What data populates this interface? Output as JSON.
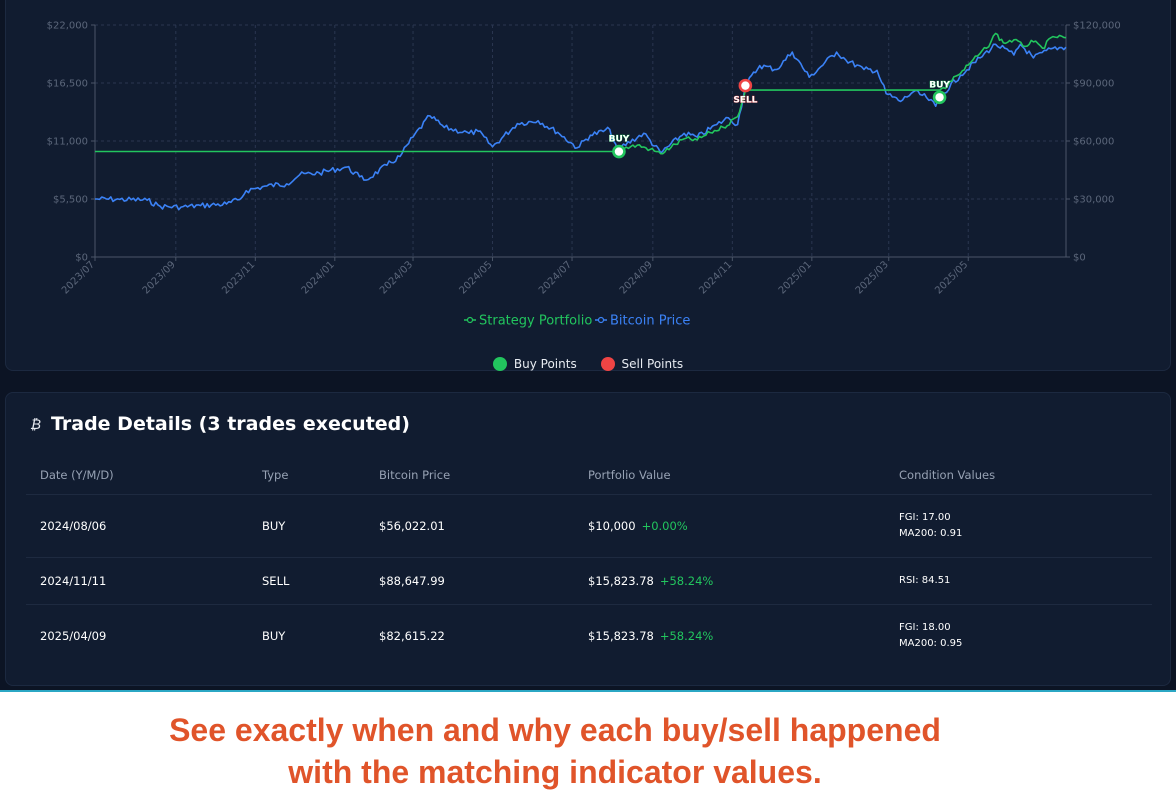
{
  "chart_data": {
    "type": "line",
    "x_range": [
      "2023-07-01",
      "2025-07-15"
    ],
    "x_tick_labels": [
      "2023/07",
      "2023/09",
      "2023/11",
      "2024/01",
      "2024/03",
      "2024/05",
      "2024/07",
      "2024/09",
      "2024/11",
      "2025/01",
      "2025/03",
      "2025/05"
    ],
    "y_left": {
      "ylim": [
        0,
        22000
      ],
      "tick_labels": [
        "$0",
        "$5,500",
        "$11,000",
        "$16,500",
        "$22,000"
      ]
    },
    "y_right": {
      "ylim": [
        0,
        120000
      ],
      "tick_labels": [
        "$0",
        "$30,000",
        "$60,000",
        "$90,000",
        "$120,000"
      ]
    },
    "grid": true,
    "series": [
      {
        "name": "Strategy Portfolio",
        "axis": "left",
        "color": "#22c55e",
        "points": [
          [
            "2023-07-01",
            10000
          ],
          [
            "2024-08-06",
            10000
          ],
          [
            "2024-08-10",
            10300
          ],
          [
            "2024-08-20",
            10600
          ],
          [
            "2024-08-30",
            10200
          ],
          [
            "2024-09-07",
            9800
          ],
          [
            "2024-09-15",
            10400
          ],
          [
            "2024-09-25",
            11200
          ],
          [
            "2024-10-05",
            11100
          ],
          [
            "2024-10-15",
            11800
          ],
          [
            "2024-10-25",
            12300
          ],
          [
            "2024-11-05",
            13300
          ],
          [
            "2024-11-11",
            15823.78
          ],
          [
            "2025-04-09",
            15823.78
          ],
          [
            "2025-04-15",
            16200
          ],
          [
            "2025-04-20",
            17100
          ],
          [
            "2025-04-25",
            17400
          ],
          [
            "2025-05-01",
            18200
          ],
          [
            "2025-05-10",
            19300
          ],
          [
            "2025-05-15",
            19800
          ],
          [
            "2025-05-22",
            21200
          ],
          [
            "2025-05-28",
            20300
          ],
          [
            "2025-06-05",
            20600
          ],
          [
            "2025-06-12",
            20000
          ],
          [
            "2025-06-20",
            20400
          ],
          [
            "2025-06-27",
            19800
          ],
          [
            "2025-07-05",
            20900
          ],
          [
            "2025-07-15",
            20800
          ]
        ]
      },
      {
        "name": "Bitcoin Price",
        "axis": "right",
        "color": "#3b82f6",
        "points": [
          [
            "2023-07-01",
            30000
          ],
          [
            "2023-07-20",
            29800
          ],
          [
            "2023-08-10",
            29400
          ],
          [
            "2023-08-20",
            26200
          ],
          [
            "2023-09-05",
            25800
          ],
          [
            "2023-09-20",
            26600
          ],
          [
            "2023-10-10",
            27400
          ],
          [
            "2023-10-20",
            29700
          ],
          [
            "2023-10-25",
            34300
          ],
          [
            "2023-11-10",
            36800
          ],
          [
            "2023-11-25",
            37800
          ],
          [
            "2023-12-05",
            42500
          ],
          [
            "2023-12-20",
            43500
          ],
          [
            "2024-01-10",
            46500
          ],
          [
            "2024-01-20",
            41500
          ],
          [
            "2024-01-25",
            39800
          ],
          [
            "2024-02-10",
            47500
          ],
          [
            "2024-02-20",
            52000
          ],
          [
            "2024-03-01",
            62000
          ],
          [
            "2024-03-14",
            73000
          ],
          [
            "2024-03-25",
            67000
          ],
          [
            "2024-04-13",
            64000
          ],
          [
            "2024-04-20",
            65000
          ],
          [
            "2024-05-01",
            57000
          ],
          [
            "2024-05-20",
            69000
          ],
          [
            "2024-06-05",
            70500
          ],
          [
            "2024-06-20",
            64500
          ],
          [
            "2024-07-05",
            56500
          ],
          [
            "2024-07-15",
            63000
          ],
          [
            "2024-07-30",
            66000
          ],
          [
            "2024-08-05",
            54000
          ],
          [
            "2024-08-06",
            56022.01
          ],
          [
            "2024-08-25",
            64000
          ],
          [
            "2024-09-07",
            53800
          ],
          [
            "2024-09-25",
            64000
          ],
          [
            "2024-10-05",
            62000
          ],
          [
            "2024-10-20",
            68500
          ],
          [
            "2024-10-29",
            72000
          ],
          [
            "2024-11-05",
            68500
          ],
          [
            "2024-11-11",
            88647.99
          ],
          [
            "2024-11-22",
            99000
          ],
          [
            "2024-12-05",
            97000
          ],
          [
            "2024-12-17",
            106000
          ],
          [
            "2024-12-30",
            93000
          ],
          [
            "2025-01-20",
            106000
          ],
          [
            "2025-01-27",
            102000
          ],
          [
            "2025-02-10",
            97000
          ],
          [
            "2025-02-20",
            96500
          ],
          [
            "2025-02-27",
            84500
          ],
          [
            "2025-03-10",
            80500
          ],
          [
            "2025-03-20",
            85500
          ],
          [
            "2025-03-30",
            82500
          ],
          [
            "2025-04-06",
            78000
          ],
          [
            "2025-04-09",
            82615.22
          ],
          [
            "2025-04-25",
            94000
          ],
          [
            "2025-05-10",
            103000
          ],
          [
            "2025-05-22",
            110000
          ],
          [
            "2025-06-05",
            104500
          ],
          [
            "2025-06-10",
            110000
          ],
          [
            "2025-06-20",
            103000
          ],
          [
            "2025-07-05",
            108000
          ],
          [
            "2025-07-15",
            108500
          ]
        ]
      }
    ],
    "markers": [
      {
        "date": "2024-08-06",
        "type": "BUY",
        "value": 10000,
        "axis": "left"
      },
      {
        "date": "2024-11-11",
        "type": "SELL",
        "value": 88647.99,
        "axis": "right"
      },
      {
        "date": "2025-04-09",
        "type": "BUY",
        "value": 82615.22,
        "axis": "right"
      }
    ]
  },
  "legend": {
    "portfolio": "Strategy Portfolio",
    "bitcoin": "Bitcoin Price",
    "buy_points": "Buy Points",
    "sell_points": "Sell Points"
  },
  "colors": {
    "portfolio": "#22c55e",
    "bitcoin": "#3b82f6",
    "buy": "#22c55e",
    "sell": "#ef4444",
    "caption": "#e0542a"
  },
  "marker_labels": {
    "buy": "BUY",
    "sell": "SELL"
  },
  "trades": {
    "icon": "bitcoin-icon",
    "title": "Trade Details (3 trades executed)",
    "columns": [
      "Date (Y/M/D)",
      "Type",
      "Bitcoin Price",
      "Portfolio Value",
      "Condition Values"
    ],
    "rows": [
      {
        "date": "2024/08/06",
        "type": "BUY",
        "price": "$56,022.01",
        "portfolio": "$10,000",
        "pct": "+0.00%",
        "cond1": "FGI: 17.00",
        "cond2": "MA200: 0.91"
      },
      {
        "date": "2024/11/11",
        "type": "SELL",
        "price": "$88,647.99",
        "portfolio": "$15,823.78",
        "pct": "+58.24%",
        "cond1": "RSI: 84.51",
        "cond2": ""
      },
      {
        "date": "2025/04/09",
        "type": "BUY",
        "price": "$82,615.22",
        "portfolio": "$15,823.78",
        "pct": "+58.24%",
        "cond1": "FGI: 18.00",
        "cond2": "MA200: 0.95"
      }
    ]
  },
  "caption": {
    "line1": "See exactly when and why each buy/sell happened",
    "line2": "with the matching indicator values."
  }
}
